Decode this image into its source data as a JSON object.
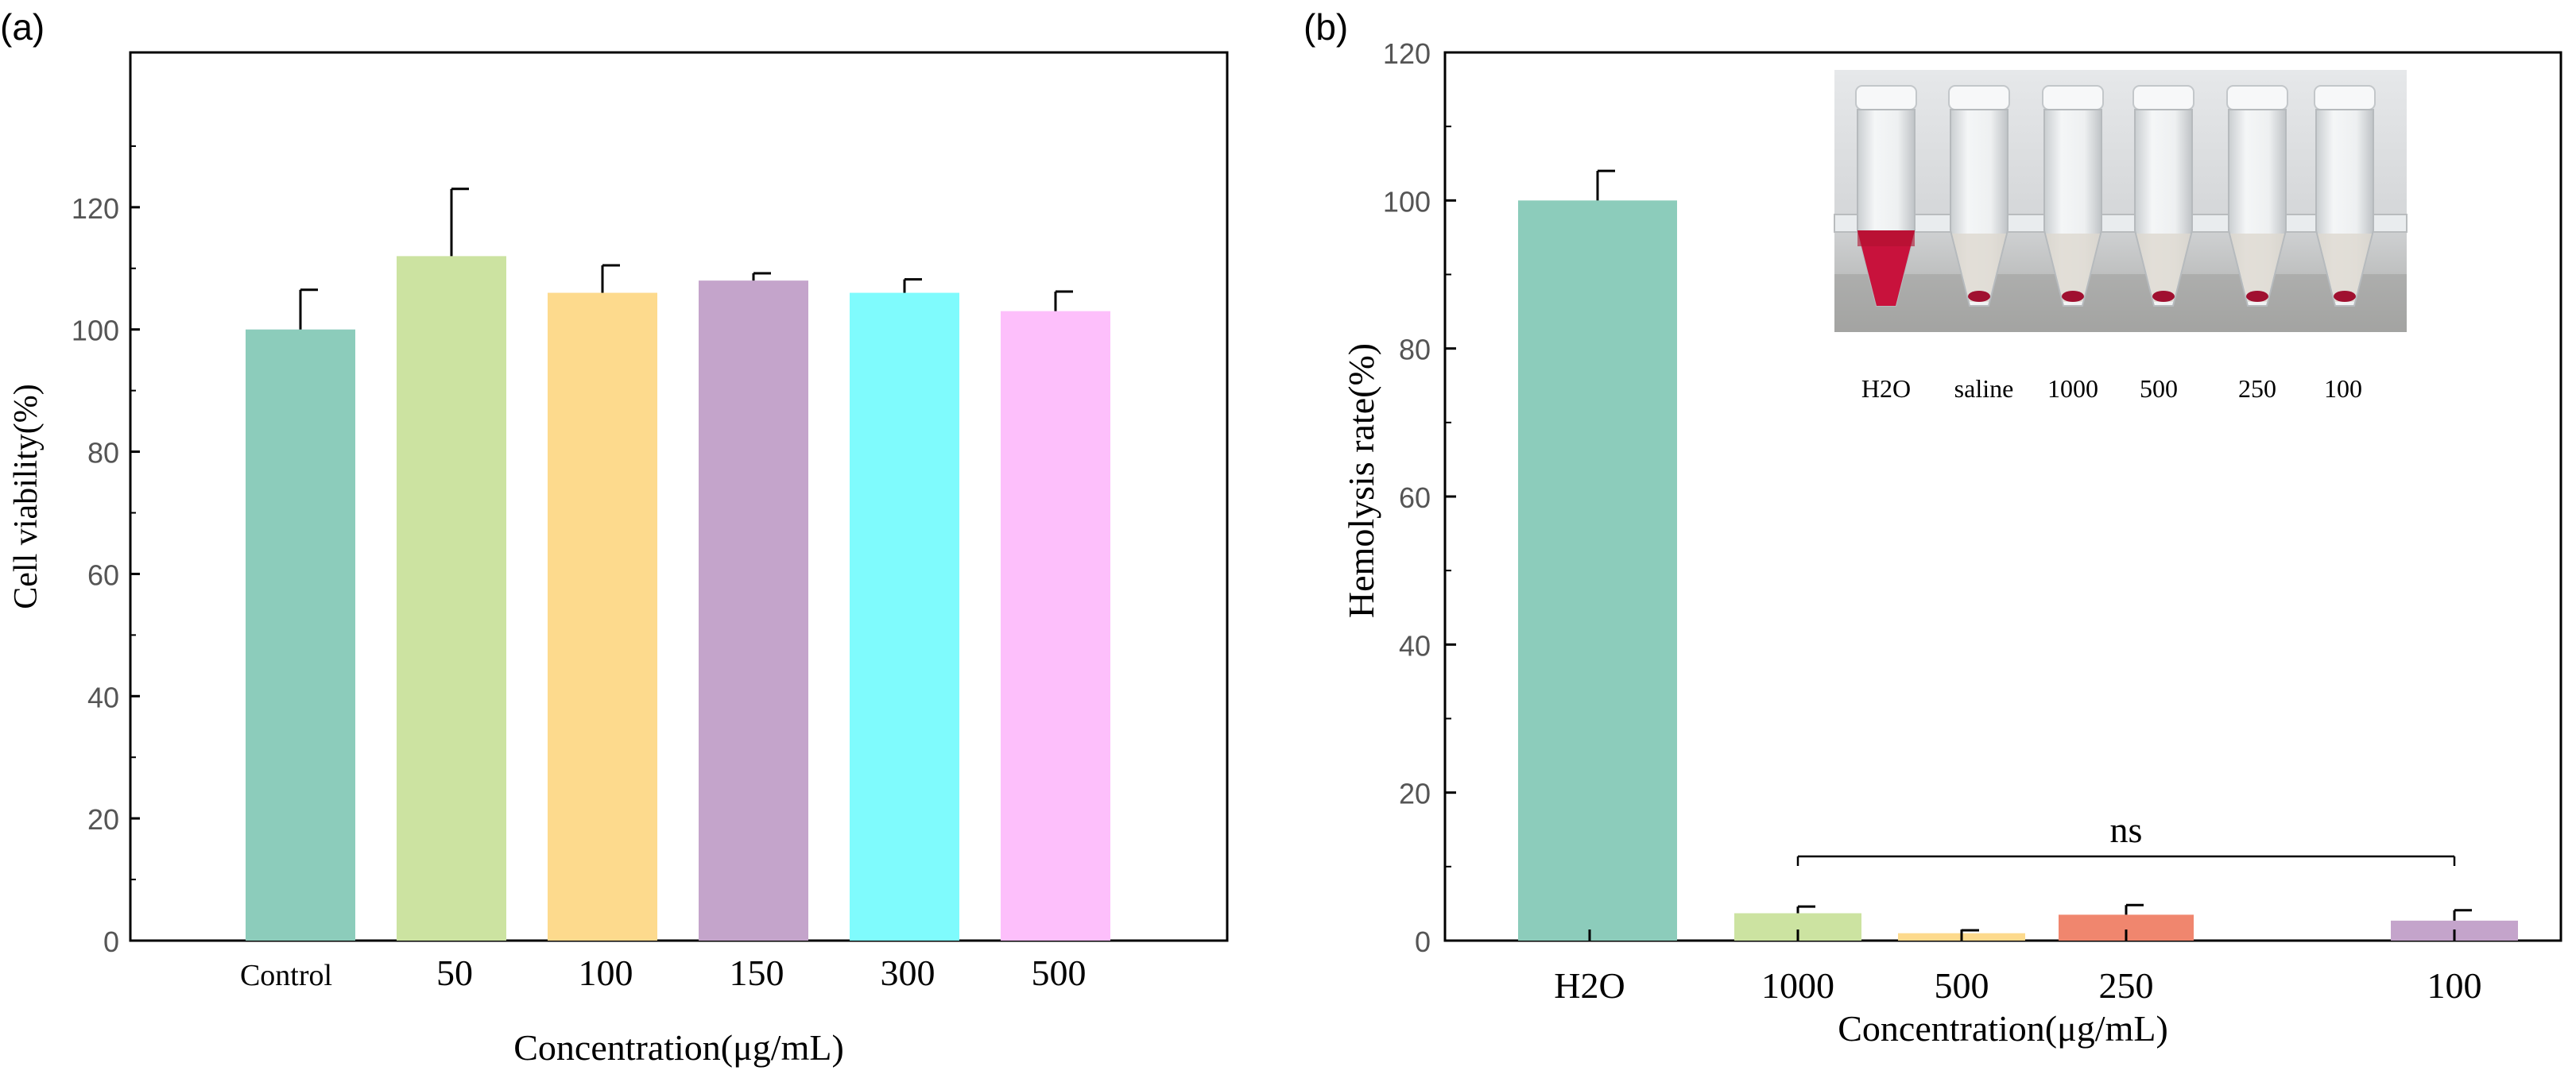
{
  "chart_data": [
    {
      "type": "bar",
      "panel_label": "(a)",
      "xlabel": "Concentration(μg/mL)",
      "ylabel": "Cell viability(%)",
      "ylim": [
        0,
        140
      ],
      "yticks": [
        0,
        20,
        40,
        60,
        80,
        100,
        120
      ],
      "categories": [
        "Control",
        "50",
        "100",
        "150",
        "300",
        "500"
      ],
      "values": [
        100,
        112,
        106,
        108,
        106,
        103
      ],
      "errors": [
        6.5,
        11,
        4.5,
        1.2,
        2.2,
        3.2
      ],
      "colors": [
        "#8CCCBB",
        "#CCE3A1",
        "#FDDA8D",
        "#C4A4CB",
        "#7FFBFD",
        "#FDBFFB"
      ]
    },
    {
      "type": "bar",
      "panel_label": "(b)",
      "xlabel": "Concentration(μg/mL)",
      "ylabel": "Hemolysis rate(%)",
      "ylim": [
        0,
        120
      ],
      "yticks": [
        0,
        20,
        40,
        60,
        80,
        100,
        120
      ],
      "categories": [
        "H2O",
        "1000",
        "500",
        "250",
        "100"
      ],
      "values": [
        100,
        3.7,
        1.0,
        3.5,
        2.7
      ],
      "errors": [
        4,
        0.9,
        0.4,
        1.3,
        1.4
      ],
      "colors": [
        "#8CCCBB",
        "#CCE3A1",
        "#FDDA8D",
        "#F0866E",
        "#C4A4CB"
      ],
      "annotation": {
        "text": "ns",
        "from": "1000",
        "to": "100"
      },
      "inset": {
        "tube_labels": [
          "H2O",
          "saline",
          "1000",
          "500",
          "250",
          "100"
        ]
      }
    }
  ]
}
